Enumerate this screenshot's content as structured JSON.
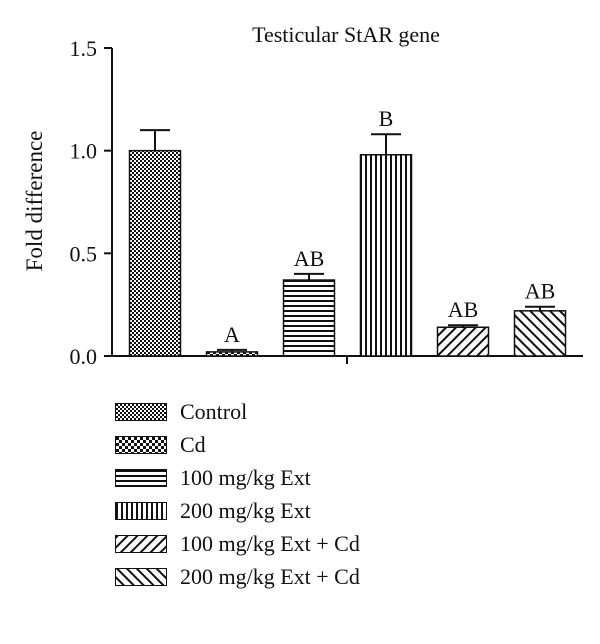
{
  "chart_data": {
    "type": "bar",
    "title": "Testicular StAR gene",
    "xlabel": "",
    "ylabel": "Fold difference",
    "ylim": [
      0,
      1.5
    ],
    "yticks": [
      "0.0",
      "0.5",
      "1.0",
      "1.5"
    ],
    "yticks_values": [
      0,
      0.5,
      1.0,
      1.5
    ],
    "grid": false,
    "legend_position": "bottom",
    "categories": [
      "Control",
      "Cd",
      "100 mg/kg Ext",
      "200 mg/kg Ext",
      "100 mg/kg Ext + Cd",
      "200 mg/kg Ext + Cd"
    ],
    "values": [
      1.0,
      0.02,
      0.37,
      0.98,
      0.14,
      0.22
    ],
    "errors": [
      0.1,
      0.01,
      0.03,
      0.1,
      0.01,
      0.02
    ],
    "annotations": [
      "",
      "A",
      "AB",
      "B",
      "AB",
      "AB"
    ],
    "patterns": [
      "dense-dots",
      "checker",
      "horizontal-lines",
      "vertical-lines",
      "diagonal-forward",
      "diagonal-backward"
    ],
    "bar_color": "#111111"
  }
}
